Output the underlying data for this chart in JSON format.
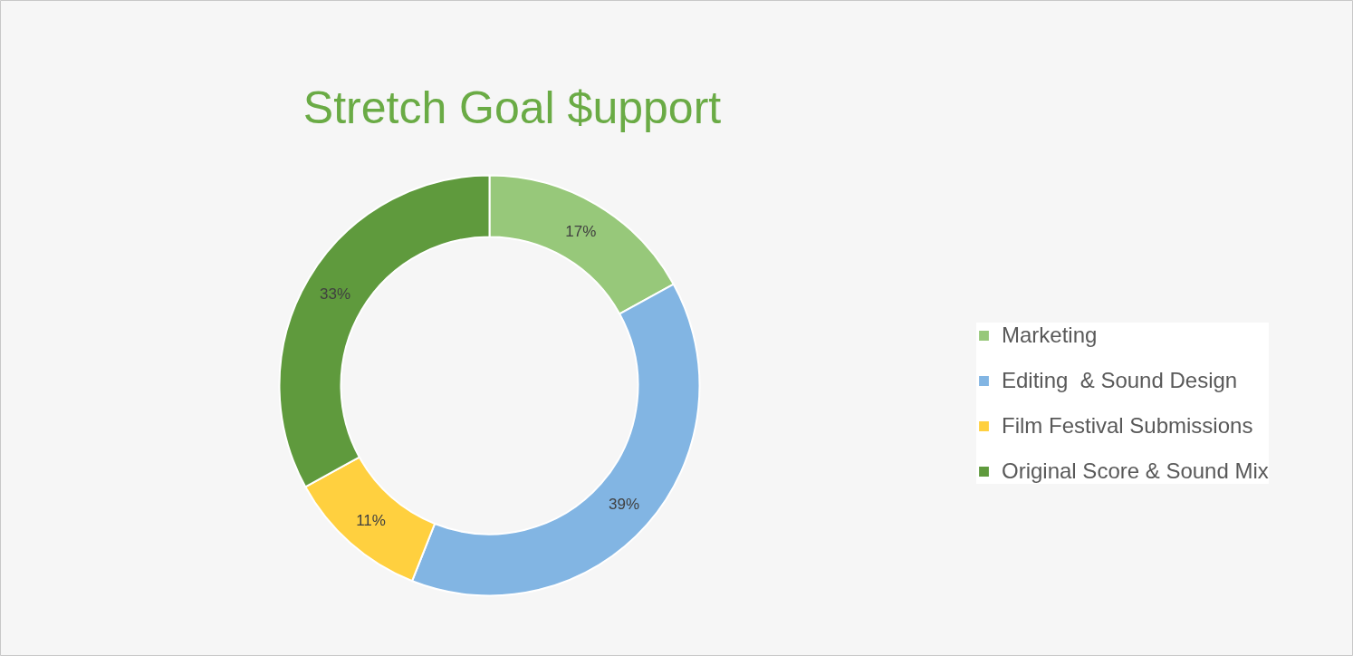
{
  "chart_data": {
    "type": "donut",
    "title": "Stretch Goal $upport",
    "categories": [
      "Marketing",
      "Editing  & Sound Design",
      "Film Festival Submissions",
      "Original Score & Sound Mix"
    ],
    "values": [
      17,
      39,
      11,
      33
    ],
    "colors": [
      "#97c87a",
      "#82b5e3",
      "#ffd03f",
      "#5f9a3d"
    ],
    "value_labels": [
      "17%",
      "39%",
      "11%",
      "33%"
    ],
    "legend": "right"
  }
}
